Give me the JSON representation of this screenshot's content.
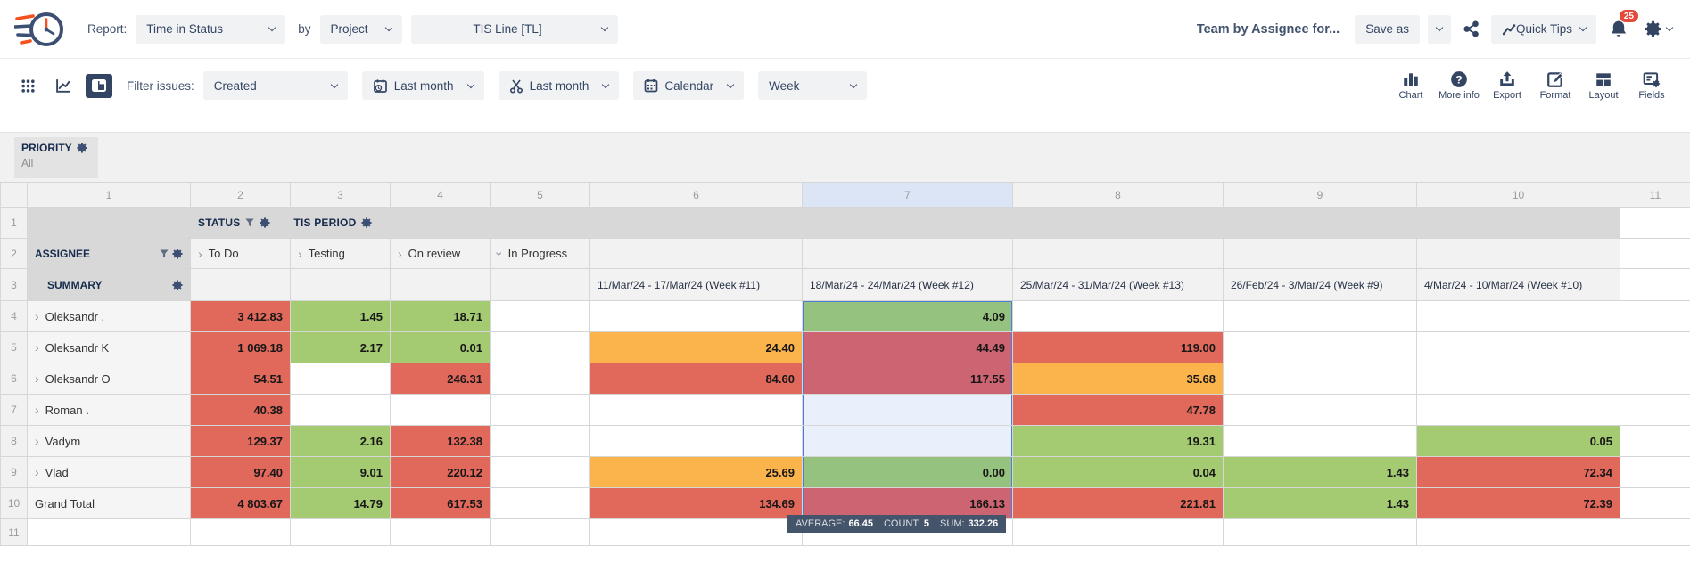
{
  "header": {
    "report_label": "Report:",
    "report_value": "Time in Status",
    "by_label": "by",
    "entity_value": "Project",
    "project_value": "TIS Line [TL]",
    "title": "Team by Assignee for...",
    "save_as_label": "Save as",
    "quick_tips_label": "Quick Tips",
    "notification_count": "25"
  },
  "toolbar": {
    "filter_issues_label": "Filter issues:",
    "filter_value": "Created",
    "created_range_value": "Last month",
    "trim_range_value": "Last month",
    "calendar_label": "Calendar",
    "granularity_value": "Week",
    "actions": [
      {
        "label": "Chart",
        "icon": "bar-chart-icon"
      },
      {
        "label": "More info",
        "icon": "question-circle-icon"
      },
      {
        "label": "Export",
        "icon": "export-icon"
      },
      {
        "label": "Format",
        "icon": "format-pencil-icon"
      },
      {
        "label": "Layout",
        "icon": "layout-icon"
      },
      {
        "label": "Fields",
        "icon": "fields-gear-icon"
      }
    ]
  },
  "priority": {
    "label": "PRIORITY",
    "value": "All"
  },
  "colors": {
    "red": "#E0695C",
    "orange": "#FBB34C",
    "green": "#A4CB72",
    "selection_blue": "#4C7ED9",
    "header_navy": "#344563",
    "badge_red": "#E5493A",
    "header_gray": "#D8D8D8",
    "tooltip_bg": "#44546A"
  },
  "grid": {
    "column_numbers": [
      "1",
      "2",
      "3",
      "4",
      "5",
      "6",
      "7",
      "8",
      "9",
      "10",
      "11"
    ],
    "selected_column": "7",
    "row1": {
      "num": "1",
      "status_label": "STATUS",
      "period_label": "TIS PERIOD"
    },
    "row2": {
      "num": "2",
      "assignee_label": "ASSIGNEE",
      "statuses": [
        {
          "label": "To Do",
          "state": "collapsed"
        },
        {
          "label": "Testing",
          "state": "collapsed"
        },
        {
          "label": "On review",
          "state": "collapsed"
        },
        {
          "label": "In Progress",
          "state": "expanded"
        }
      ]
    },
    "row3": {
      "num": "3",
      "summary_label": "SUMMARY",
      "periods": [
        "11/Mar/24 - 17/Mar/24 (Week #11)",
        "18/Mar/24 - 24/Mar/24 (Week #12)",
        "25/Mar/24 - 31/Mar/24 (Week #13)",
        "26/Feb/24 - 3/Mar/24 (Week #9)",
        "4/Mar/24 - 10/Mar/24 (Week #10)"
      ]
    },
    "rows": [
      {
        "num": "4",
        "name": "Oleksandr .",
        "selTop": true,
        "cells": [
          {
            "v": "3 412.83",
            "c": "red"
          },
          {
            "v": "1.45",
            "c": "green"
          },
          {
            "v": "18.71",
            "c": "green"
          },
          {},
          {},
          {
            "v": "4.09",
            "c": "green",
            "sel": 1
          },
          {},
          {},
          {},
          {}
        ]
      },
      {
        "num": "5",
        "name": "Oleksandr K",
        "cells": [
          {
            "v": "1 069.18",
            "c": "red"
          },
          {
            "v": "2.17",
            "c": "green"
          },
          {
            "v": "0.01",
            "c": "green"
          },
          {},
          {
            "v": "24.40",
            "c": "orange"
          },
          {
            "v": "44.49",
            "c": "red",
            "sel": 1
          },
          {
            "v": "119.00",
            "c": "red"
          },
          {},
          {},
          {}
        ]
      },
      {
        "num": "6",
        "name": "Oleksandr O",
        "cells": [
          {
            "v": "54.51",
            "c": "red"
          },
          {},
          {
            "v": "246.31",
            "c": "red"
          },
          {},
          {
            "v": "84.60",
            "c": "red"
          },
          {
            "v": "117.55",
            "c": "red",
            "sel": 1
          },
          {
            "v": "35.68",
            "c": "orange"
          },
          {},
          {},
          {}
        ]
      },
      {
        "num": "7",
        "name": "Roman .",
        "cells": [
          {
            "v": "40.38",
            "c": "red"
          },
          {},
          {},
          {},
          {},
          {
            "sel": 1
          },
          {
            "v": "47.78",
            "c": "red"
          },
          {},
          {},
          {}
        ]
      },
      {
        "num": "8",
        "name": "Vadym",
        "cells": [
          {
            "v": "129.37",
            "c": "red"
          },
          {
            "v": "2.16",
            "c": "green"
          },
          {
            "v": "132.38",
            "c": "red"
          },
          {},
          {},
          {
            "sel": 1
          },
          {
            "v": "19.31",
            "c": "green"
          },
          {},
          {
            "v": "0.05",
            "c": "green"
          },
          {}
        ]
      },
      {
        "num": "9",
        "name": "Vlad",
        "cells": [
          {
            "v": "97.40",
            "c": "red"
          },
          {
            "v": "9.01",
            "c": "green"
          },
          {
            "v": "220.12",
            "c": "red"
          },
          {},
          {
            "v": "25.69",
            "c": "orange"
          },
          {
            "v": "0.00",
            "c": "green",
            "sel": 1
          },
          {
            "v": "0.04",
            "c": "green"
          },
          {
            "v": "1.43",
            "c": "green"
          },
          {
            "v": "72.34",
            "c": "red"
          },
          {}
        ]
      },
      {
        "num": "10",
        "name": "Grand Total",
        "total": true,
        "cells": [
          {
            "v": "4 803.67",
            "c": "red"
          },
          {
            "v": "14.79",
            "c": "green"
          },
          {
            "v": "617.53",
            "c": "red"
          },
          {},
          {
            "v": "134.69",
            "c": "red"
          },
          {
            "v": "166.13",
            "c": "red",
            "sel": 1
          },
          {
            "v": "221.81",
            "c": "red"
          },
          {
            "v": "1.43",
            "c": "green"
          },
          {
            "v": "72.39",
            "c": "red"
          },
          {}
        ]
      },
      {
        "num": "11",
        "name": "",
        "empty": true,
        "cells": [
          {},
          {},
          {},
          {},
          {},
          {},
          {},
          {},
          {},
          {}
        ]
      }
    ],
    "tooltip": {
      "average_label": "AVERAGE:",
      "average_value": "66.45",
      "count_label": "COUNT:",
      "count_value": "5",
      "sum_label": "SUM:",
      "sum_value": "332.26"
    }
  }
}
